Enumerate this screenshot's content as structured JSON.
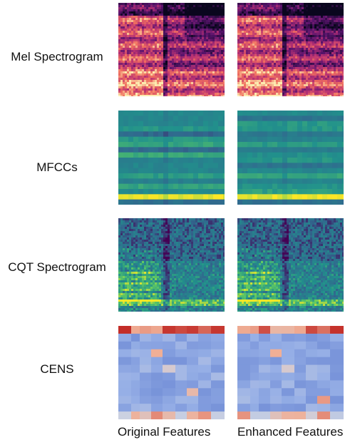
{
  "rows": [
    {
      "label": "Mel Spectrogram",
      "type": "mel"
    },
    {
      "label": "MFCCs",
      "type": "mfcc"
    },
    {
      "label": "CQT Spectrogram",
      "type": "cqt"
    },
    {
      "label": "CENS",
      "type": "cens"
    }
  ],
  "columns": [
    "Original Features",
    "Enhanced Features"
  ]
}
